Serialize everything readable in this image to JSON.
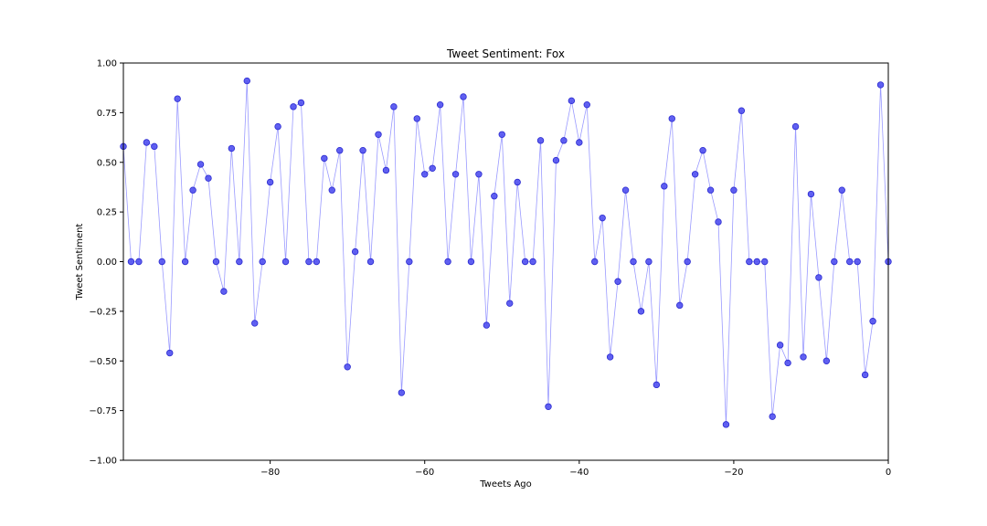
{
  "chart_data": {
    "type": "line",
    "title": "Tweet Sentiment: Fox",
    "xlabel": "Tweets Ago",
    "ylabel": "Tweet Sentiment",
    "xlim": [
      -99,
      0
    ],
    "ylim": [
      -1.0,
      1.0
    ],
    "xticks": [
      -80,
      -60,
      -40,
      -20,
      0
    ],
    "xtick_labels": [
      "−80",
      "−60",
      "−40",
      "−20",
      "0"
    ],
    "yticks": [
      -1.0,
      -0.75,
      -0.5,
      -0.25,
      0.0,
      0.25,
      0.5,
      0.75,
      1.0
    ],
    "ytick_labels": [
      "−1.00",
      "−0.75",
      "−0.50",
      "−0.25",
      "0.00",
      "0.25",
      "0.50",
      "0.75",
      "1.00"
    ],
    "grid": false,
    "line_color": "#9a9aff",
    "marker_color": "#5050f0",
    "marker_edge_color": "#2a2ad0",
    "series": [
      {
        "x": [
          -99,
          -98,
          -97,
          -96,
          -95,
          -94,
          -93,
          -92,
          -91,
          -90,
          -89,
          -88,
          -87,
          -86,
          -85,
          -84,
          -83,
          -82,
          -81,
          -80,
          -79,
          -78,
          -77,
          -76,
          -75,
          -74,
          -73,
          -72,
          -71,
          -70,
          -69,
          -68,
          -67,
          -66,
          -65,
          -64,
          -63,
          -62,
          -61,
          -60,
          -59,
          -58,
          -57,
          -56,
          -55,
          -54,
          -53,
          -52,
          -51,
          -50,
          -49,
          -48,
          -47,
          -46,
          -45,
          -44,
          -43,
          -42,
          -41,
          -40,
          -39,
          -38,
          -37,
          -36,
          -35,
          -34,
          -33,
          -32,
          -31,
          -30,
          -29,
          -28,
          -27,
          -26,
          -25,
          -24,
          -23,
          -22,
          -21,
          -20,
          -19,
          -18,
          -17,
          -16,
          -15,
          -14,
          -13,
          -12,
          -11,
          -10,
          -9,
          -8,
          -7,
          -6,
          -5,
          -4,
          -3,
          -2,
          -1,
          0
        ],
        "values": [
          0.58,
          0.0,
          0.0,
          0.6,
          0.58,
          0.0,
          -0.46,
          0.82,
          0.0,
          0.36,
          0.49,
          0.42,
          0.0,
          -0.15,
          0.57,
          0.0,
          0.91,
          -0.31,
          0.0,
          0.4,
          0.68,
          0.0,
          0.78,
          0.8,
          0.0,
          0.0,
          0.52,
          0.36,
          0.56,
          -0.53,
          0.05,
          0.56,
          0.0,
          0.64,
          0.46,
          0.78,
          -0.66,
          0.0,
          0.72,
          0.44,
          0.47,
          0.79,
          0.0,
          0.44,
          0.83,
          0.0,
          0.44,
          -0.32,
          0.33,
          0.64,
          -0.21,
          0.4,
          0.0,
          0.0,
          0.61,
          -0.73,
          0.51,
          0.61,
          0.81,
          0.6,
          0.79,
          0.0,
          0.22,
          -0.48,
          -0.1,
          0.36,
          0.0,
          -0.25,
          0.0,
          -0.62,
          0.38,
          0.72,
          -0.22,
          0.0,
          0.44,
          0.56,
          0.36,
          0.2,
          -0.82,
          0.36,
          0.76,
          0.0,
          0.0,
          0.0,
          -0.78,
          -0.42,
          -0.51,
          0.68,
          -0.48,
          0.34,
          -0.08,
          -0.5,
          0.0,
          0.36,
          0.0,
          0.0,
          -0.57,
          -0.3,
          0.89,
          0.0
        ]
      }
    ]
  }
}
